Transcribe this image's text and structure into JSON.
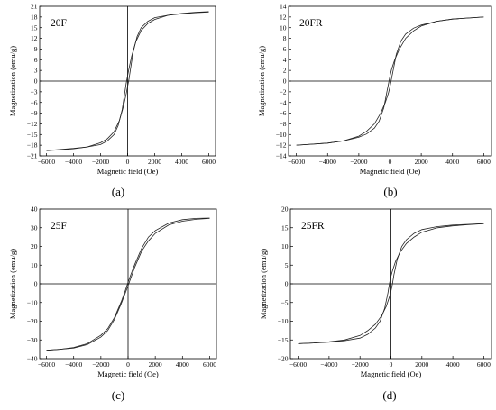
{
  "chart_data": [
    {
      "type": "line",
      "sample_label": "20F",
      "panel_label": "(a)",
      "xlabel": "Magnetic field (Oe)",
      "ylabel": "Magnetization (emu/g)",
      "xlim": [
        -6500,
        6500
      ],
      "ylim": [
        -21,
        21
      ],
      "xticks": [
        -6000,
        -4000,
        -2000,
        0,
        2000,
        4000,
        6000
      ],
      "yticks": [
        -21,
        -18,
        -15,
        -12,
        -9,
        -6,
        -3,
        0,
        3,
        6,
        9,
        12,
        15,
        18,
        21
      ],
      "grid": false,
      "series": [
        {
          "x": [
            -6000,
            -5000,
            -4000,
            -3000,
            -2000,
            -1500,
            -1000,
            -600,
            -300,
            -100,
            0,
            100,
            200,
            400,
            700,
            1000,
            1500,
            2000,
            3000,
            4000,
            5000,
            6000
          ],
          "y": [
            -19.5,
            -19.3,
            -19.0,
            -18.5,
            -17.3,
            -16.2,
            -14.2,
            -11.0,
            -7.0,
            -3.5,
            -1.5,
            0.5,
            3.0,
            8.0,
            12.5,
            15.0,
            16.8,
            17.8,
            18.5,
            18.9,
            19.2,
            19.4
          ]
        },
        {
          "x": [
            -6000,
            -5000,
            -4000,
            -3000,
            -2000,
            -1500,
            -1000,
            -700,
            -400,
            -200,
            -100,
            0,
            100,
            300,
            600,
            1000,
            1500,
            2000,
            3000,
            4000,
            5000,
            6000
          ],
          "y": [
            -19.5,
            -19.2,
            -18.9,
            -18.5,
            -17.8,
            -16.8,
            -15.0,
            -12.5,
            -8.0,
            -3.0,
            -0.5,
            1.5,
            3.5,
            7.0,
            11.0,
            14.2,
            16.2,
            17.3,
            18.5,
            19.0,
            19.3,
            19.5
          ]
        }
      ]
    },
    {
      "type": "line",
      "sample_label": "20FR",
      "panel_label": "(b)",
      "xlabel": "Magnetic field (Oe)",
      "ylabel": "Magnetization (emu/g)",
      "xlim": [
        -6500,
        6500
      ],
      "ylim": [
        -14,
        14
      ],
      "xticks": [
        -6000,
        -4000,
        -2000,
        0,
        2000,
        4000,
        6000
      ],
      "yticks": [
        -14,
        -12,
        -10,
        -8,
        -6,
        -4,
        -2,
        0,
        2,
        4,
        6,
        8,
        10,
        12,
        14
      ],
      "grid": false,
      "series": [
        {
          "x": [
            -6000,
            -5000,
            -4000,
            -3000,
            -2000,
            -1500,
            -1000,
            -600,
            -300,
            -100,
            0,
            100,
            200,
            400,
            700,
            1000,
            1500,
            2000,
            3000,
            4000,
            5000,
            6000
          ],
          "y": [
            -12.0,
            -11.8,
            -11.6,
            -11.2,
            -10.3,
            -9.4,
            -8.0,
            -6.0,
            -4.0,
            -2.2,
            -1.0,
            0.5,
            2.0,
            5.0,
            7.5,
            8.8,
            9.9,
            10.5,
            11.2,
            11.6,
            11.8,
            12.0
          ]
        },
        {
          "x": [
            -6000,
            -5000,
            -4000,
            -3000,
            -2000,
            -1500,
            -1000,
            -700,
            -400,
            -200,
            -100,
            0,
            100,
            300,
            600,
            1000,
            1500,
            2000,
            3000,
            4000,
            5000,
            6000
          ],
          "y": [
            -12.0,
            -11.8,
            -11.6,
            -11.2,
            -10.5,
            -9.9,
            -8.8,
            -7.5,
            -5.0,
            -2.0,
            -0.5,
            1.0,
            2.2,
            4.0,
            6.0,
            8.0,
            9.4,
            10.3,
            11.2,
            11.6,
            11.8,
            12.0
          ]
        }
      ]
    },
    {
      "type": "line",
      "sample_label": "25F",
      "panel_label": "(c)",
      "xlabel": "Magnetic field (Oe)",
      "ylabel": "Magnetization (emu/g)",
      "xlim": [
        -6500,
        6500
      ],
      "ylim": [
        -40,
        40
      ],
      "xticks": [
        -6000,
        -4000,
        -2000,
        0,
        2000,
        4000,
        6000
      ],
      "yticks": [
        -40,
        -30,
        -20,
        -10,
        0,
        10,
        20,
        30,
        40
      ],
      "grid": false,
      "series": [
        {
          "x": [
            -6000,
            -5000,
            -4000,
            -3000,
            -2000,
            -1500,
            -1000,
            -500,
            -200,
            0,
            200,
            500,
            1000,
            1500,
            2000,
            3000,
            4000,
            5000,
            6000
          ],
          "y": [
            -35.5,
            -35.0,
            -34.3,
            -32.5,
            -28.5,
            -25.0,
            -19.0,
            -10.5,
            -4.8,
            -1.0,
            3.0,
            9.0,
            17.5,
            23.0,
            27.0,
            31.5,
            33.5,
            34.5,
            35.0
          ]
        },
        {
          "x": [
            -6000,
            -5000,
            -4000,
            -3000,
            -2000,
            -1500,
            -1000,
            -500,
            -200,
            0,
            200,
            500,
            1000,
            1500,
            2000,
            3000,
            4000,
            5000,
            6000
          ],
          "y": [
            -35.5,
            -35.0,
            -34.0,
            -32.0,
            -27.5,
            -24.0,
            -18.0,
            -9.5,
            -3.5,
            0.8,
            4.8,
            10.5,
            19.0,
            25.0,
            28.5,
            32.5,
            34.3,
            35.0,
            35.2
          ]
        }
      ]
    },
    {
      "type": "line",
      "sample_label": "25FR",
      "panel_label": "(d)",
      "xlabel": "Magnetic field (Oe)",
      "ylabel": "Magnetization (emu/g)",
      "xlim": [
        -6500,
        6500
      ],
      "ylim": [
        -20,
        20
      ],
      "xticks": [
        -6000,
        -4000,
        -2000,
        0,
        2000,
        4000,
        6000
      ],
      "yticks": [
        -20,
        -15,
        -10,
        -5,
        0,
        5,
        10,
        15,
        20
      ],
      "grid": false,
      "series": [
        {
          "x": [
            -6000,
            -5000,
            -4000,
            -3000,
            -2000,
            -1500,
            -1000,
            -600,
            -300,
            -100,
            0,
            100,
            200,
            400,
            700,
            1000,
            1500,
            2000,
            3000,
            4000,
            5000,
            6000
          ],
          "y": [
            -16.0,
            -15.8,
            -15.5,
            -15.0,
            -13.8,
            -12.5,
            -10.8,
            -8.5,
            -6.0,
            -3.5,
            -2.0,
            0.0,
            2.5,
            6.5,
            10.0,
            11.8,
            13.5,
            14.5,
            15.3,
            15.7,
            15.9,
            16.1
          ]
        },
        {
          "x": [
            -6000,
            -5000,
            -4000,
            -3000,
            -2000,
            -1500,
            -1000,
            -700,
            -400,
            -200,
            -100,
            0,
            100,
            300,
            600,
            1000,
            1500,
            2000,
            3000,
            4000,
            5000,
            6000
          ],
          "y": [
            -16.0,
            -15.8,
            -15.6,
            -15.2,
            -14.5,
            -13.5,
            -11.8,
            -10.0,
            -6.5,
            -2.5,
            0.0,
            2.0,
            3.5,
            6.0,
            8.5,
            10.8,
            12.5,
            13.8,
            15.0,
            15.5,
            15.8,
            16.1
          ]
        }
      ]
    }
  ]
}
